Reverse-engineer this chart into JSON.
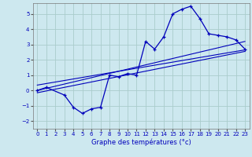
{
  "xlabel": "Graphe des températures (°c)",
  "xlim": [
    -0.5,
    23.5
  ],
  "ylim": [
    -2.5,
    5.7
  ],
  "xticks": [
    0,
    1,
    2,
    3,
    4,
    5,
    6,
    7,
    8,
    9,
    10,
    11,
    12,
    13,
    14,
    15,
    16,
    17,
    18,
    19,
    20,
    21,
    22,
    23
  ],
  "yticks": [
    -2,
    -1,
    0,
    1,
    2,
    3,
    4,
    5
  ],
  "bg_color": "#cde8ef",
  "grid_color": "#aacccc",
  "line_color": "#0000bb",
  "temp_data": {
    "x": [
      0,
      1,
      3,
      4,
      5,
      6,
      7,
      8,
      9,
      10,
      11,
      12,
      13,
      14,
      15,
      16,
      17,
      18,
      19,
      20,
      21,
      22,
      23
    ],
    "y": [
      0.0,
      0.2,
      -0.3,
      -1.1,
      -1.5,
      -1.2,
      -1.1,
      1.0,
      0.9,
      1.1,
      1.0,
      3.2,
      2.7,
      3.5,
      5.0,
      5.3,
      5.5,
      4.7,
      3.7,
      3.6,
      3.5,
      3.3,
      2.7
    ]
  },
  "line1_data": {
    "x": [
      0,
      23
    ],
    "y": [
      0.0,
      3.2
    ]
  },
  "line2_data": {
    "x": [
      0,
      23
    ],
    "y": [
      -0.15,
      2.55
    ]
  },
  "line3_data": {
    "x": [
      0,
      23
    ],
    "y": [
      0.35,
      2.65
    ]
  }
}
